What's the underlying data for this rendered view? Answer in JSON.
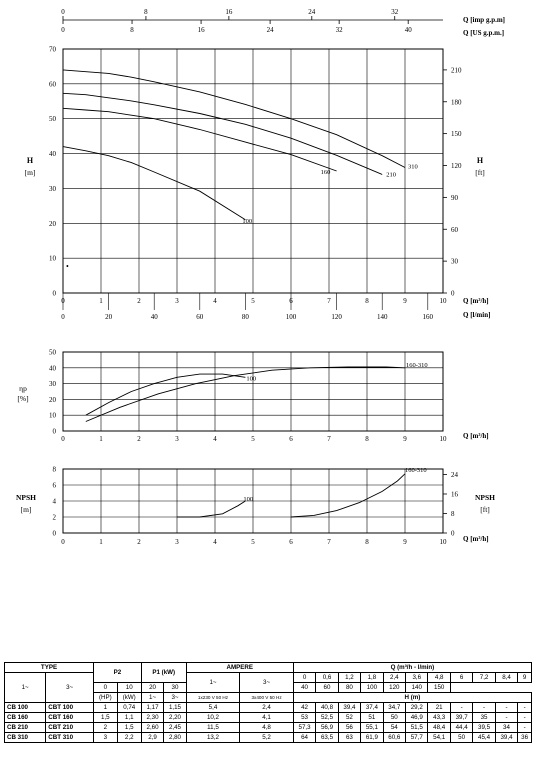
{
  "chart_data": [
    {
      "type": "line",
      "name": "head-curve",
      "top_axes": [
        {
          "label": "Q [imp g.p.m]",
          "ticks": [
            0,
            8,
            16,
            24,
            32
          ]
        },
        {
          "label": "Q [US g.p.m.]",
          "ticks": [
            0,
            8,
            16,
            24,
            32,
            40
          ]
        }
      ],
      "xlabel": "Q [m³/h]",
      "xlabel2": "Q [l/min]",
      "x_ticks": [
        0,
        1,
        2,
        3,
        4,
        5,
        6,
        7,
        8,
        9,
        10
      ],
      "x2_ticks": [
        0,
        20,
        40,
        60,
        80,
        100,
        120,
        140,
        160
      ],
      "ylabel": "H",
      "ylabel_unit": "[m]",
      "y_ticks": [
        0,
        10,
        20,
        30,
        40,
        50,
        60,
        70
      ],
      "ylabel_right": "H",
      "ylabel_right_unit": "[ft]",
      "yright_ticks": [
        0,
        30,
        60,
        90,
        120,
        150,
        180,
        210
      ],
      "xlim": [
        0,
        10
      ],
      "ylim": [
        0,
        70
      ],
      "series": [
        {
          "name": "100",
          "x": [
            0,
            0.6,
            1.2,
            1.8,
            2.4,
            3.6,
            4.8
          ],
          "y": [
            42,
            40.8,
            39.4,
            37.4,
            34.7,
            29.2,
            21
          ]
        },
        {
          "name": "160",
          "x": [
            0,
            0.6,
            1.2,
            1.8,
            2.4,
            3.6,
            4.8,
            6,
            7.2
          ],
          "y": [
            53,
            52.5,
            52,
            51,
            50,
            46.9,
            43.3,
            39.7,
            35
          ]
        },
        {
          "name": "210",
          "x": [
            0,
            0.6,
            1.2,
            1.8,
            2.4,
            3.6,
            4.8,
            6,
            7.2,
            8.4
          ],
          "y": [
            57.3,
            56.9,
            56,
            55.1,
            54,
            51.5,
            48.4,
            44.4,
            39.5,
            34
          ]
        },
        {
          "name": "310",
          "x": [
            0,
            0.6,
            1.2,
            1.8,
            2.4,
            3.6,
            4.8,
            6,
            7.2,
            8.4,
            9
          ],
          "y": [
            64,
            63.5,
            63,
            61.9,
            60.6,
            57.7,
            54.1,
            50,
            45.4,
            39.4,
            36
          ]
        }
      ],
      "annotation": "•"
    },
    {
      "type": "line",
      "name": "efficiency-curve",
      "xlabel": "Q [m³/h]",
      "x_ticks": [
        0,
        1,
        2,
        3,
        4,
        5,
        6,
        7,
        8,
        9,
        10
      ],
      "ylabel": "ηp",
      "ylabel_unit": "[%]",
      "y_ticks": [
        0,
        10,
        20,
        30,
        40,
        50
      ],
      "xlim": [
        0,
        10
      ],
      "ylim": [
        0,
        50
      ],
      "series": [
        {
          "name": "100",
          "x": [
            0.6,
            1.2,
            1.8,
            2.4,
            3,
            3.6,
            4.2,
            4.8
          ],
          "y": [
            10,
            18,
            25,
            30,
            34,
            36,
            36,
            34
          ]
        },
        {
          "name": "160-310",
          "x": [
            0.6,
            1.5,
            2.5,
            3.5,
            4.5,
            5.5,
            6.5,
            7.5,
            8.5,
            9
          ],
          "y": [
            6,
            15,
            23.5,
            30,
            35,
            38.5,
            40,
            40.5,
            40.5,
            40
          ]
        }
      ]
    },
    {
      "type": "line",
      "name": "npsh-curve",
      "xlabel": "Q [m³/h]",
      "x_ticks": [
        0,
        1,
        2,
        3,
        4,
        5,
        6,
        7,
        8,
        9,
        10
      ],
      "ylabel": "NPSH",
      "ylabel_unit": "[m]",
      "y_ticks": [
        0,
        2,
        4,
        6,
        8
      ],
      "ylabel_right": "NPSH",
      "ylabel_right_unit": "[ft]",
      "yright_ticks": [
        0,
        8,
        16,
        24
      ],
      "xlim": [
        0,
        10
      ],
      "ylim": [
        0,
        8
      ],
      "series": [
        {
          "name": "100",
          "x": [
            3,
            3.6,
            4.2,
            4.6,
            4.8
          ],
          "y": [
            2,
            2,
            2.4,
            3.4,
            4
          ]
        },
        {
          "name": "160-310",
          "x": [
            6,
            6.6,
            7.2,
            7.8,
            8.4,
            8.8,
            9
          ],
          "y": [
            2,
            2.2,
            2.8,
            3.8,
            5.2,
            6.5,
            7.4
          ]
        }
      ]
    },
    {
      "type": "table",
      "header": {
        "type": "TYPE",
        "single_phase": "1~",
        "three_phase": "3~",
        "p2": "P2",
        "p2_hp": "(HP)",
        "p2_kw": "(kW)",
        "p1": "P1",
        "p1_unit": "(kW)",
        "p1_1": "1~",
        "p1_3": "3~",
        "ampere": "AMPERE",
        "amp_1": "1~",
        "amp_3": "3~",
        "amp_1_sub": "1x230 V 50 Hz",
        "amp_3_sub": "3x400 V 50 Hz",
        "q_title": "Q (m³/h - l/min)",
        "h_title": "H (m)"
      },
      "q_m3h": [
        "0",
        "0,6",
        "1,2",
        "1,8",
        "2,4",
        "3,6",
        "4,8",
        "6",
        "7,2",
        "8,4",
        "9"
      ],
      "q_lmin": [
        "0",
        "10",
        "20",
        "30",
        "40",
        "60",
        "80",
        "100",
        "120",
        "140",
        "150"
      ],
      "rows": [
        {
          "t1": "CB 100",
          "t3": "CBT 100",
          "hp": "1",
          "kw": "0,74",
          "p1_1": "1,17",
          "p1_3": "1,15",
          "a1": "5,4",
          "a3": "2,4",
          "h": [
            "42",
            "40,8",
            "39,4",
            "37,4",
            "34,7",
            "29,2",
            "21",
            "-",
            "-",
            "-",
            "-"
          ]
        },
        {
          "t1": "CB 160",
          "t3": "CBT 160",
          "hp": "1,5",
          "kw": "1,1",
          "p1_1": "2,30",
          "p1_3": "2,20",
          "a1": "10,2",
          "a3": "4,1",
          "h": [
            "53",
            "52,5",
            "52",
            "51",
            "50",
            "46,9",
            "43,3",
            "39,7",
            "35",
            "-",
            "-"
          ]
        },
        {
          "t1": "CB 210",
          "t3": "CBT 210",
          "hp": "2",
          "kw": "1,5",
          "p1_1": "2,60",
          "p1_3": "2,45",
          "a1": "11,5",
          "a3": "4,8",
          "h": [
            "57,3",
            "56,9",
            "56",
            "55,1",
            "54",
            "51,5",
            "48,4",
            "44,4",
            "39,5",
            "34",
            "-"
          ]
        },
        {
          "t1": "CB 310",
          "t3": "CBT 310",
          "hp": "3",
          "kw": "2,2",
          "p1_1": "2,9",
          "p1_3": "2,80",
          "a1": "13,2",
          "a3": "5,2",
          "h": [
            "64",
            "63,5",
            "63",
            "61,9",
            "60,6",
            "57,7",
            "54,1",
            "50",
            "45,4",
            "39,4",
            "36"
          ]
        }
      ]
    }
  ]
}
